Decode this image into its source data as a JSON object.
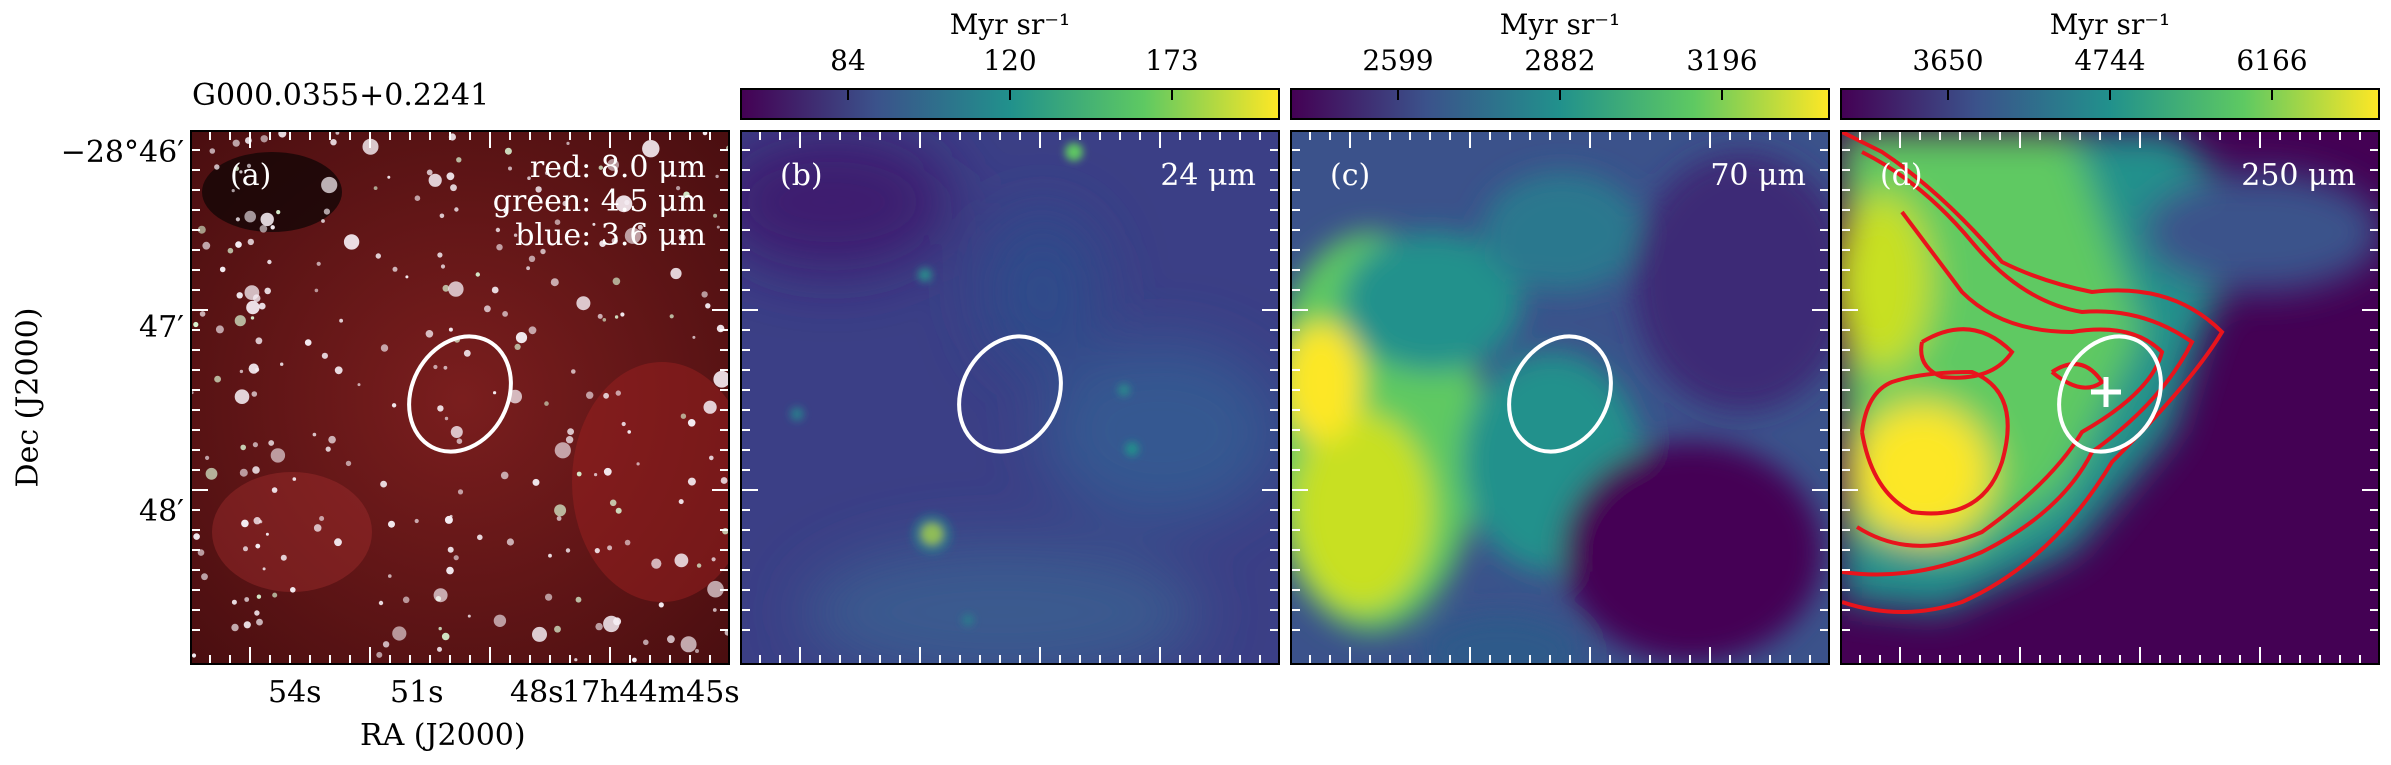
{
  "source_name": "G000.0355+0.2241",
  "panels": [
    {
      "letter": "(a)",
      "legend": [
        "red: 8.0 μm",
        "green: 4.5 μm",
        "blue: 3.6 μm"
      ]
    },
    {
      "letter": "(b)",
      "band": "24 μm",
      "unit": "Myr sr⁻¹",
      "ticks": [
        "84",
        "120",
        "173"
      ]
    },
    {
      "letter": "(c)",
      "band": "70 μm",
      "unit": "Myr sr⁻¹",
      "ticks": [
        "2599",
        "2882",
        "3196"
      ]
    },
    {
      "letter": "(d)",
      "band": "250 μm",
      "unit": "Myr sr⁻¹",
      "ticks": [
        "3650",
        "4744",
        "6166"
      ]
    }
  ],
  "axes": {
    "ylabel": "Dec (J2000)",
    "xlabel": "RA (J2000)",
    "yticks": [
      "−28°46′",
      "47′",
      "48′"
    ],
    "xticks": [
      "54s",
      "51s",
      "48s",
      "17h44m45s"
    ]
  },
  "colors": {
    "viridis": [
      "#440154",
      "#3b528b",
      "#21918c",
      "#5ec962",
      "#fde725"
    ],
    "contour": "#e8141c",
    "ellipse": "#ffffff"
  }
}
